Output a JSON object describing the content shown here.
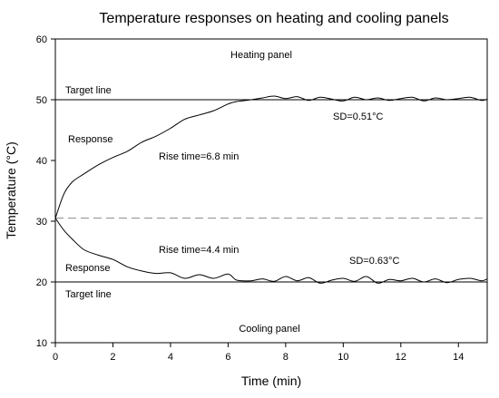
{
  "chart_data": {
    "type": "line",
    "title": "Temperature responses on heating and cooling panels",
    "xlabel": "Time (min)",
    "ylabel": "Temperature (°C)",
    "xlim": [
      0,
      15
    ],
    "ylim": [
      10,
      60
    ],
    "xticks": [
      "0",
      "2",
      "4",
      "6",
      "8",
      "10",
      "12",
      "14"
    ],
    "yticks": [
      "10",
      "20",
      "30",
      "40",
      "50",
      "60"
    ],
    "grid": false,
    "reference_lines": [
      {
        "label": "Target line",
        "y": 50,
        "style": "solid"
      },
      {
        "label": "Target line",
        "y": 20,
        "style": "solid"
      },
      {
        "label": "",
        "y": 30.5,
        "style": "dashed"
      }
    ],
    "annotations": {
      "heating_panel": "Heating panel",
      "cooling_panel": "Cooling panel",
      "heating_response": "Response",
      "cooling_response": "Response",
      "heating_rise_time": "Rise time=6.8 min",
      "cooling_rise_time": "Rise time=4.4 min",
      "heating_sd": "SD=0.51°C",
      "cooling_sd": "SD=0.63°C",
      "heating_target": "Target line",
      "cooling_target": "Target line"
    },
    "series": [
      {
        "x": [
          0,
          0.3,
          0.6,
          1,
          1.5,
          2,
          2.5,
          3,
          3.5,
          4,
          4.5,
          5,
          5.5,
          6,
          6.3,
          6.8,
          7.2,
          7.6,
          8,
          8.4,
          8.8,
          9.2,
          9.6,
          10,
          10.4,
          10.8,
          11.2,
          11.6,
          12,
          12.4,
          12.8,
          13.2,
          13.6,
          14,
          14.4,
          14.8,
          15
        ],
        "values": [
          30.5,
          34.5,
          36.5,
          37.8,
          39.3,
          40.5,
          41.5,
          43.0,
          44.0,
          45.3,
          46.8,
          47.5,
          48.2,
          49.3,
          49.7,
          50.0,
          50.3,
          50.6,
          50.2,
          50.5,
          49.9,
          50.4,
          50.1,
          49.8,
          50.4,
          50.0,
          50.3,
          49.9,
          50.2,
          50.4,
          49.8,
          50.3,
          50.0,
          50.2,
          50.4,
          49.9,
          50.1
        ]
      },
      {
        "x": [
          0,
          0.3,
          0.6,
          1,
          1.5,
          2,
          2.5,
          3,
          3.5,
          4,
          4.5,
          5,
          5.5,
          6,
          6.3,
          6.8,
          7.2,
          7.6,
          8,
          8.4,
          8.8,
          9.2,
          9.6,
          10,
          10.4,
          10.8,
          11.2,
          11.6,
          12,
          12.4,
          12.8,
          13.2,
          13.6,
          14,
          14.4,
          14.8,
          15
        ],
        "values": [
          30.5,
          28.5,
          27.0,
          25.3,
          24.4,
          23.7,
          22.5,
          21.8,
          21.4,
          21.5,
          20.6,
          21.2,
          20.6,
          21.3,
          20.3,
          20.2,
          20.5,
          20.1,
          20.9,
          20.2,
          20.7,
          19.8,
          20.3,
          20.6,
          20.1,
          20.9,
          19.8,
          20.4,
          20.2,
          20.6,
          20.0,
          20.5,
          19.9,
          20.4,
          20.6,
          20.2,
          20.5
        ]
      }
    ]
  }
}
